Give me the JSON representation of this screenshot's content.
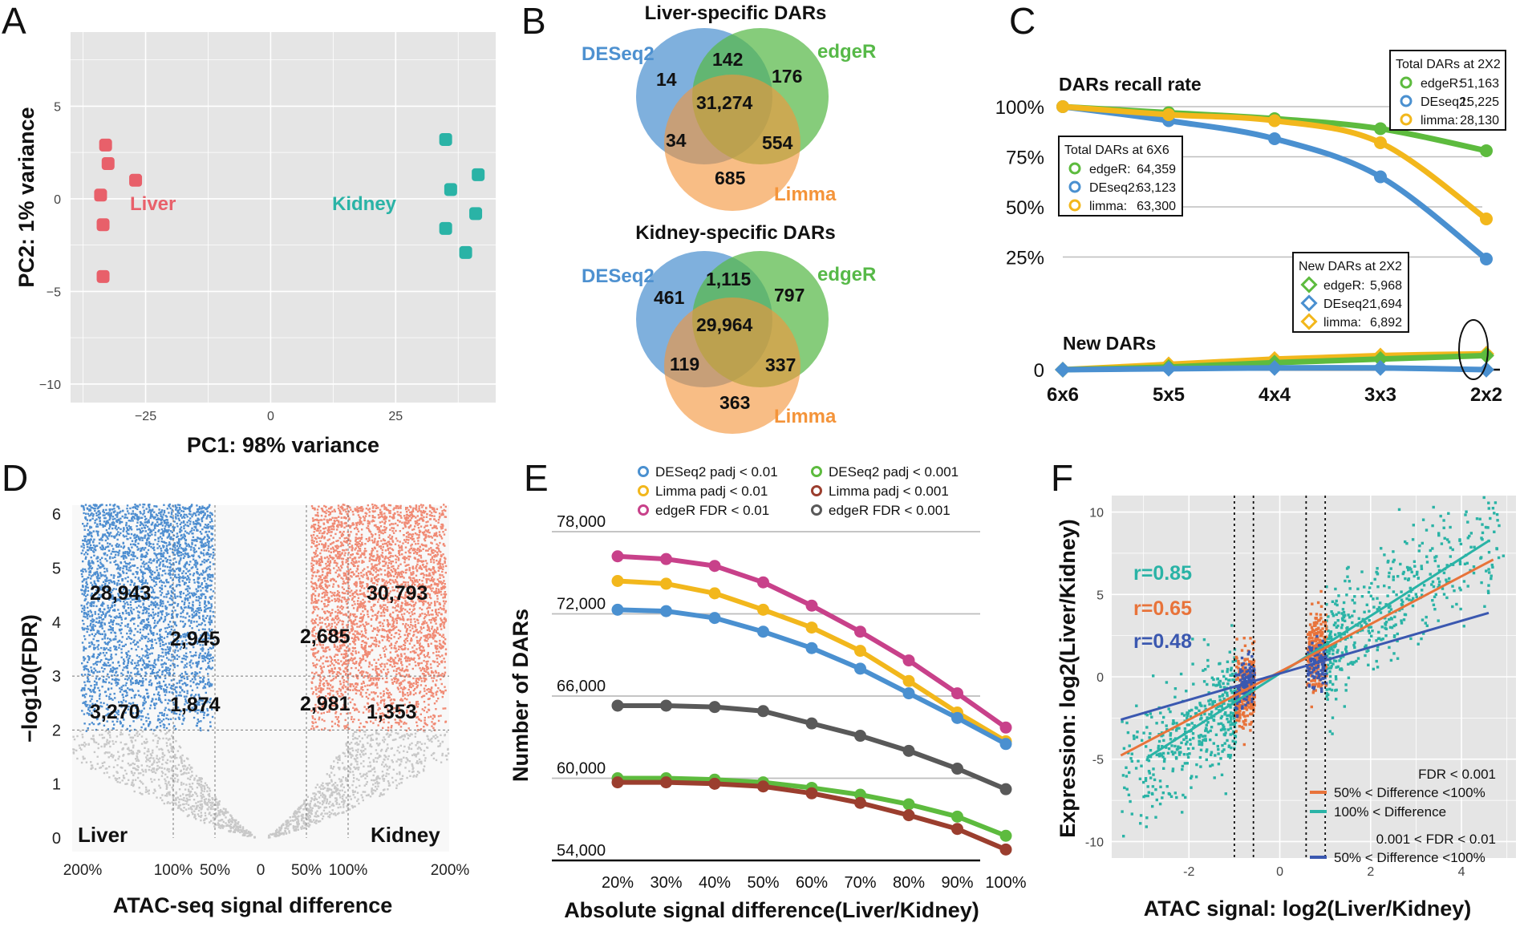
{
  "panels": [
    "A",
    "B",
    "C",
    "D",
    "E",
    "F"
  ],
  "chart_data": [
    {
      "id": "A",
      "type": "scatter",
      "xlabel": "PC1: 98% variance",
      "ylabel": "PC2: 1% variance",
      "xlim": [
        -40,
        45
      ],
      "ylim": [
        -11,
        9
      ],
      "xticks": [
        -25,
        0,
        25
      ],
      "yticks": [
        5,
        0,
        -5,
        -10
      ],
      "grid": true,
      "series": [
        {
          "name": "Liver",
          "color": "#E8606A",
          "points": [
            [
              -33,
              2.9
            ],
            [
              -32.5,
              1.9
            ],
            [
              -27,
              1.0
            ],
            [
              -34,
              0.2
            ],
            [
              -33.5,
              -1.4
            ],
            [
              -33.5,
              -4.2
            ]
          ]
        },
        {
          "name": "Kidney",
          "color": "#2AB3A6",
          "points": [
            [
              35,
              3.2
            ],
            [
              41.5,
              1.3
            ],
            [
              36,
              0.5
            ],
            [
              41,
              -0.8
            ],
            [
              35,
              -1.6
            ],
            [
              39,
              -2.9
            ]
          ]
        }
      ]
    },
    {
      "id": "B",
      "type": "venn",
      "sets": [
        "DESeq2",
        "edgeR",
        "Limma"
      ],
      "set_colors": {
        "DESeq2": "#4E91D0",
        "edgeR": "#57B948",
        "Limma": "#F4943A"
      },
      "diagrams": [
        {
          "title": "Liver-specific DARs",
          "regions": {
            "deseq_only": "14",
            "deseq_edger": "142",
            "edger_only": "176",
            "all": "31,274",
            "deseq_limma": "34",
            "edger_limma": "554",
            "limma_only": "685"
          }
        },
        {
          "title": "Kidney-specific DARs",
          "regions": {
            "deseq_only": "461",
            "deseq_edger": "1,115",
            "edger_only": "797",
            "all": "29,964",
            "deseq_limma": "119",
            "edger_limma": "337",
            "limma_only": "363"
          }
        }
      ]
    },
    {
      "id": "C",
      "type": "line",
      "categories": [
        "6x6",
        "5x5",
        "4x4",
        "3x3",
        "2x2"
      ],
      "yticks": [
        "100%",
        "75%",
        "50%",
        "25%",
        "0"
      ],
      "recall_title": "DARs recall rate",
      "new_title": "New DARs",
      "recall_series": [
        {
          "name": "edgeR",
          "color": "#5DBB3E",
          "values": [
            100,
            97,
            94,
            89,
            78
          ]
        },
        {
          "name": "DEseq2",
          "color": "#4A90D0",
          "values": [
            100,
            93,
            84,
            65,
            24
          ]
        },
        {
          "name": "limma",
          "color": "#F2B71C",
          "values": [
            100,
            96,
            93,
            82,
            44
          ]
        }
      ],
      "new_series": [
        {
          "name": "limma",
          "color": "#F2B71C",
          "values": [
            0,
            3,
            6,
            8,
            9
          ]
        },
        {
          "name": "edgeR",
          "color": "#5DBB3E",
          "values": [
            0,
            1.5,
            4,
            6,
            8
          ]
        },
        {
          "name": "DEseq2",
          "color": "#4A90D0",
          "values": [
            0,
            0.5,
            1,
            1,
            0
          ]
        }
      ],
      "legend_top": {
        "title": "Total DARs at 2X2",
        "entries": [
          {
            "name": "edgeR:",
            "value": "51,163",
            "color": "#5DBB3E"
          },
          {
            "name": "DEseq2:",
            "value": "15,225",
            "color": "#4A90D0"
          },
          {
            "name": "limma:",
            "value": "28,130",
            "color": "#F2B71C"
          }
        ]
      },
      "legend_mid": {
        "title": "Total DARs at 6X6",
        "entries": [
          {
            "name": "edgeR:",
            "value": "64,359",
            "color": "#5DBB3E"
          },
          {
            "name": "DEseq2:",
            "value": "63,123",
            "color": "#4A90D0"
          },
          {
            "name": "limma:",
            "value": "63,300",
            "color": "#F2B71C"
          }
        ]
      },
      "legend_new": {
        "title": "New DARs at 2X2",
        "entries": [
          {
            "name": "edgeR:",
            "value": "5,968",
            "color": "#5DBB3E"
          },
          {
            "name": "DEseq2:",
            "value": "1,694",
            "color": "#4A90D0"
          },
          {
            "name": "limma:",
            "value": "6,892",
            "color": "#F2B71C"
          }
        ]
      }
    },
    {
      "id": "D",
      "type": "scatter",
      "xlabel": "ATAC-seq signal difference",
      "ylabel": "−log10(FDR)",
      "xticks": [
        "200%",
        "100%",
        "50%",
        "0",
        "50%",
        "100%",
        "200%"
      ],
      "yticks": [
        "0",
        "1",
        "2",
        "3",
        "4",
        "5",
        "6"
      ],
      "colors": {
        "bg": "#C8C8C8",
        "left": "#4E8ED0",
        "right": "#F08A74"
      },
      "group_labels": {
        "left": "Liver",
        "right": "Kidney"
      },
      "counts": {
        "left_high": "28,943",
        "left_mid": "2,945",
        "left_low_a": "3,270",
        "left_low_b": "1,874",
        "right_mid": "2,685",
        "right_high": "30,793",
        "right_low_a": "2,981",
        "right_low_b": "1,353"
      }
    },
    {
      "id": "E",
      "type": "line",
      "xlabel": "Absolute signal difference(Liver/Kidney)",
      "ylabel": "Number of DARs",
      "categories": [
        "20%",
        "30%",
        "40%",
        "50%",
        "60%",
        "70%",
        "80%",
        "90%",
        "100%"
      ],
      "yticks": [
        "78,000",
        "72,000",
        "66,000",
        "60,000",
        "54,000"
      ],
      "ylim": [
        54000,
        78000
      ],
      "series": [
        {
          "name": "edgeR FDR   < 0.01",
          "color": "#C8418A",
          "values": [
            76200,
            76000,
            75500,
            74300,
            72600,
            70700,
            68600,
            66200,
            63700
          ]
        },
        {
          "name": "Limma padj     < 0.01",
          "color": "#F2B71C",
          "values": [
            74400,
            74200,
            73500,
            72300,
            71000,
            69300,
            67100,
            64800,
            62700
          ]
        },
        {
          "name": "DESeq2 padj < 0.01",
          "color": "#4A90D0",
          "values": [
            72300,
            72200,
            71700,
            70700,
            69500,
            68000,
            66200,
            64400,
            62500
          ]
        },
        {
          "name": "edgeR FDR     < 0.001",
          "color": "#595959",
          "values": [
            65300,
            65300,
            65200,
            64900,
            64000,
            63100,
            62000,
            60700,
            59200
          ]
        },
        {
          "name": "DESeq2 padj < 0.001",
          "color": "#5DBB3E",
          "values": [
            60000,
            60000,
            59900,
            59700,
            59300,
            58800,
            58100,
            57200,
            55800
          ]
        },
        {
          "name": "Limma padj     < 0.001",
          "color": "#9B3E2E",
          "values": [
            59700,
            59700,
            59600,
            59400,
            58900,
            58200,
            57300,
            56300,
            54800
          ]
        }
      ],
      "legend": [
        {
          "name": "DESeq2 padj < 0.01",
          "color": "#4A90D0"
        },
        {
          "name": "DESeq2 padj < 0.001",
          "color": "#5DBB3E"
        },
        {
          "name": "Limma padj     < 0.01",
          "color": "#F2B71C"
        },
        {
          "name": "Limma padj     < 0.001",
          "color": "#9B3E2E"
        },
        {
          "name": "edgeR FDR   < 0.01",
          "color": "#C8418A"
        },
        {
          "name": "edgeR FDR     < 0.001",
          "color": "#595959"
        }
      ]
    },
    {
      "id": "F",
      "type": "scatter",
      "xlabel": "ATAC signal: log2(Liver/Kidney)",
      "ylabel": "Expression: log2(Liver/Kidney)",
      "xlim": [
        -3.7,
        5.2
      ],
      "ylim": [
        -11,
        11
      ],
      "xticks": [
        "-2",
        "0",
        "2",
        "4"
      ],
      "yticks": [
        "10",
        "5",
        "0",
        "-5",
        "-10"
      ],
      "vlines": [
        -1,
        -0.58,
        0.58,
        1
      ],
      "series": [
        {
          "name": "100% < Difference",
          "color": "#2AB3A6",
          "r": "r=0.85",
          "slope": 1.75,
          "intercept": 0.2
        },
        {
          "name": "50% < Difference <100%",
          "color": "#E8733A",
          "r": "r=0.65",
          "slope": 1.45,
          "intercept": 0.3
        },
        {
          "name": "50% < Difference <100%",
          "color": "#3B58B0",
          "r": "r=0.48",
          "slope": 0.8,
          "intercept": 0.2
        }
      ],
      "legend": {
        "fdr1": "FDR < 0.001",
        "fdr2": "0.001 < FDR < 0.01"
      }
    }
  ]
}
